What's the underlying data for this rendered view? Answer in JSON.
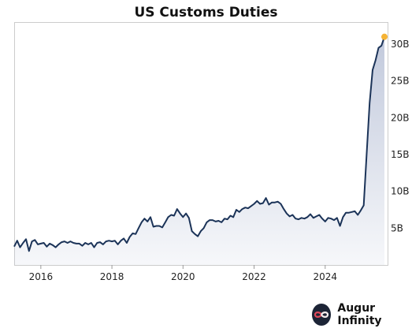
{
  "chart_data": {
    "type": "area",
    "title": "US Customs Duties",
    "xlabel": "",
    "ylabel": "",
    "x_ticks": [
      "2016",
      "2018",
      "2020",
      "2022",
      "2024"
    ],
    "y_ticks": [
      "5B",
      "10B",
      "15B",
      "20B",
      "25B",
      "30B"
    ],
    "x_range": [
      "2015-04",
      "2025-09"
    ],
    "ylim": [
      0,
      33
    ],
    "y_axis_side": "right",
    "grid": false,
    "legend": "none",
    "line_color": "#1b3358",
    "fill_color": "#b7c0d6",
    "end_marker_color": "#f5b335",
    "series": [
      {
        "x": [
          "2015-04",
          "2015-05",
          "2015-06",
          "2015-07",
          "2015-08",
          "2015-09",
          "2015-10",
          "2015-11",
          "2015-12",
          "2016-01",
          "2016-02",
          "2016-03",
          "2016-04",
          "2016-05",
          "2016-06",
          "2016-07",
          "2016-08",
          "2016-09",
          "2016-10",
          "2016-11",
          "2016-12",
          "2017-01",
          "2017-02",
          "2017-03",
          "2017-04",
          "2017-05",
          "2017-06",
          "2017-07",
          "2017-08",
          "2017-09",
          "2017-10",
          "2017-11",
          "2017-12",
          "2018-01",
          "2018-02",
          "2018-03",
          "2018-04",
          "2018-05",
          "2018-06",
          "2018-07",
          "2018-08",
          "2018-09",
          "2018-10",
          "2018-11",
          "2018-12",
          "2019-01",
          "2019-02",
          "2019-03",
          "2019-04",
          "2019-05",
          "2019-06",
          "2019-07",
          "2019-08",
          "2019-09",
          "2019-10",
          "2019-11",
          "2019-12",
          "2020-01",
          "2020-02",
          "2020-03",
          "2020-04",
          "2020-05",
          "2020-06",
          "2020-07",
          "2020-08",
          "2020-09",
          "2020-10",
          "2020-11",
          "2020-12",
          "2021-01",
          "2021-02",
          "2021-03",
          "2021-04",
          "2021-05",
          "2021-06",
          "2021-07",
          "2021-08",
          "2021-09",
          "2021-10",
          "2021-11",
          "2021-12",
          "2022-01",
          "2022-02",
          "2022-03",
          "2022-04",
          "2022-05",
          "2022-06",
          "2022-07",
          "2022-08",
          "2022-09",
          "2022-10",
          "2022-11",
          "2022-12",
          "2023-01",
          "2023-02",
          "2023-03",
          "2023-04",
          "2023-05",
          "2023-06",
          "2023-07",
          "2023-08",
          "2023-09",
          "2023-10",
          "2023-11",
          "2023-12",
          "2024-01",
          "2024-02",
          "2024-03",
          "2024-04",
          "2024-05",
          "2024-06",
          "2024-07",
          "2024-08",
          "2024-09",
          "2024-10",
          "2024-11",
          "2024-12",
          "2025-01",
          "2025-02",
          "2025-03",
          "2025-04",
          "2025-05",
          "2025-06",
          "2025-07",
          "2025-08",
          "2025-09"
        ],
        "values": [
          2.5,
          3.3,
          2.4,
          3.0,
          3.5,
          1.9,
          3.2,
          3.4,
          2.8,
          2.9,
          3.0,
          2.5,
          2.9,
          2.7,
          2.4,
          2.8,
          3.1,
          3.2,
          3.0,
          3.2,
          3.0,
          2.9,
          2.9,
          2.6,
          3.0,
          2.8,
          3.0,
          2.4,
          3.0,
          3.1,
          2.8,
          3.2,
          3.3,
          3.2,
          3.3,
          2.8,
          3.3,
          3.6,
          3.0,
          3.8,
          4.3,
          4.2,
          5.0,
          5.8,
          6.3,
          5.9,
          6.5,
          5.2,
          5.3,
          5.3,
          5.1,
          5.8,
          6.5,
          6.8,
          6.7,
          7.6,
          7.0,
          6.5,
          7.0,
          6.4,
          4.6,
          4.2,
          3.9,
          4.6,
          5.0,
          5.8,
          6.1,
          6.1,
          5.9,
          6.0,
          5.8,
          6.3,
          6.2,
          6.7,
          6.5,
          7.5,
          7.2,
          7.6,
          7.8,
          7.7,
          8.0,
          8.3,
          8.7,
          8.3,
          8.4,
          9.1,
          8.2,
          8.5,
          8.5,
          8.6,
          8.3,
          7.6,
          7.0,
          6.6,
          6.8,
          6.3,
          6.2,
          6.4,
          6.3,
          6.5,
          6.9,
          6.4,
          6.6,
          6.8,
          6.3,
          5.9,
          6.4,
          6.3,
          6.1,
          6.4,
          5.3,
          6.5,
          7.1,
          7.1,
          7.2,
          7.3,
          6.8,
          7.4,
          8.1,
          15.0,
          22.0,
          26.5,
          27.8,
          29.5,
          29.8,
          31.0
        ]
      }
    ]
  },
  "brand": {
    "name": "Augur Infinity",
    "logo_icon": "infinity-icon"
  }
}
